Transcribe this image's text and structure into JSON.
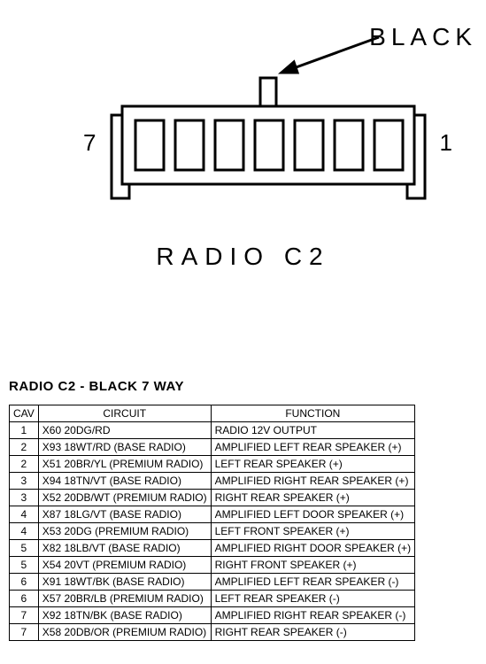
{
  "diagram": {
    "top_label": "BLACK",
    "pin_left": "7",
    "pin_right": "1",
    "title": "RADIO C2",
    "stroke": "#000000",
    "bg": "#ffffff"
  },
  "table": {
    "title": "RADIO C2 - BLACK 7 WAY",
    "columns": [
      "CAV",
      "CIRCUIT",
      "FUNCTION"
    ],
    "rows": [
      [
        "1",
        "X60 20DG/RD",
        "RADIO 12V OUTPUT"
      ],
      [
        "2",
        "X93 18WT/RD (BASE RADIO)",
        "AMPLIFIED LEFT REAR SPEAKER (+)"
      ],
      [
        "2",
        "X51 20BR/YL (PREMIUM RADIO)",
        "LEFT REAR SPEAKER (+)"
      ],
      [
        "3",
        "X94 18TN/VT (BASE RADIO)",
        "AMPLIFIED RIGHT REAR SPEAKER (+)"
      ],
      [
        "3",
        "X52 20DB/WT (PREMIUM RADIO)",
        "RIGHT REAR SPEAKER (+)"
      ],
      [
        "4",
        "X87 18LG/VT (BASE RADIO)",
        "AMPLIFIED LEFT DOOR SPEAKER (+)"
      ],
      [
        "4",
        "X53 20DG (PREMIUM RADIO)",
        "LEFT FRONT SPEAKER (+)"
      ],
      [
        "5",
        "X82 18LB/VT (BASE RADIO)",
        "AMPLIFIED RIGHT DOOR SPEAKER (+)"
      ],
      [
        "5",
        "X54 20VT (PREMIUM RADIO)",
        "RIGHT FRONT SPEAKER (+)"
      ],
      [
        "6",
        "X91 18WT/BK (BASE RADIO)",
        "AMPLIFIED LEFT REAR SPEAKER (-)"
      ],
      [
        "6",
        "X57 20BR/LB (PREMIUM RADIO)",
        "LEFT REAR SPEAKER (-)"
      ],
      [
        "7",
        "X92 18TN/BK (BASE RADIO)",
        "AMPLIFIED RIGHT REAR SPEAKER (-)"
      ],
      [
        "7",
        "X58 20DB/OR (PREMIUM RADIO)",
        "RIGHT REAR SPEAKER (-)"
      ]
    ]
  }
}
